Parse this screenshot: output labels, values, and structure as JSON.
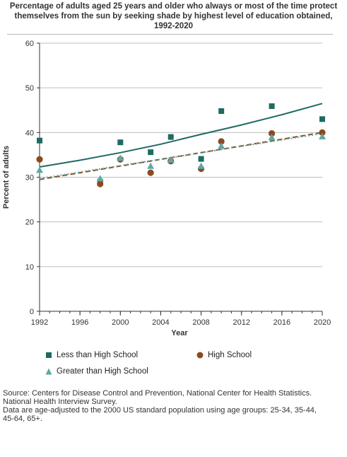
{
  "title_lines": [
    "Percentage of adults aged 25 years and older who always or most of the time protect",
    "themselves from the sun by seeking shade by highest level of education obtained,",
    "1992-2020"
  ],
  "colors": {
    "less_than_hs": "#1f6a63",
    "hs": "#8b4a1f",
    "gt_hs": "#5fa9a3",
    "gridline": "#bdbdbd"
  },
  "chart_data": {
    "type": "scatter",
    "xlabel": "Year",
    "ylabel": "Percent of adults",
    "xlim": [
      1992,
      2020
    ],
    "ylim": [
      0,
      60
    ],
    "xticks": [
      1992,
      1996,
      2000,
      2004,
      2008,
      2012,
      2016,
      2020
    ],
    "yticks": [
      0,
      10,
      20,
      30,
      40,
      50,
      60
    ],
    "grid": "horizontal",
    "legend_placement": "bottom",
    "series": [
      {
        "name": "Less than High School",
        "marker": "square",
        "color": "#1f6a63",
        "x": [
          1992,
          1998,
          2000,
          2003,
          2005,
          2008,
          2010,
          2015,
          2020
        ],
        "y": [
          38.2,
          29.0,
          37.8,
          35.6,
          39.0,
          34.1,
          44.8,
          45.9,
          43.0
        ],
        "trend": {
          "style": "solid",
          "x": [
            1992,
            1996,
            2000,
            2004,
            2008,
            2012,
            2016,
            2020
          ],
          "y": [
            32.3,
            33.8,
            35.5,
            37.4,
            39.6,
            41.7,
            44.0,
            46.5
          ]
        }
      },
      {
        "name": "High School",
        "marker": "circle",
        "color": "#8b4a1f",
        "x": [
          1992,
          1998,
          2000,
          2003,
          2005,
          2008,
          2010,
          2015,
          2020
        ],
        "y": [
          34.0,
          28.5,
          34.0,
          31.0,
          33.6,
          31.9,
          38.0,
          39.8,
          40.0
        ],
        "trend": {
          "style": "dashed",
          "x": [
            1992,
            2020
          ],
          "y": [
            29.5,
            40.0
          ]
        }
      },
      {
        "name": "Greater than High School",
        "marker": "triangle",
        "color": "#5fa9a3",
        "x": [
          1992,
          1998,
          2000,
          2003,
          2005,
          2008,
          2010,
          2015,
          2020
        ],
        "y": [
          31.6,
          29.7,
          34.3,
          32.5,
          33.9,
          32.5,
          37.0,
          38.9,
          39.1
        ],
        "trend": {
          "style": "dotted",
          "x": [
            1992,
            2020
          ],
          "y": [
            29.7,
            39.8
          ]
        }
      }
    ]
  },
  "legend": {
    "less_than_hs": "Less than High School",
    "hs": "High School",
    "gt_hs": "Greater than High School"
  },
  "source_lines": [
    "Source: Centers for Disease Control and Prevention, National Center for Health Statistics.",
    "National Health Interview Survey.",
    "Data are age-adjusted to the 2000 US standard population using age groups: 25-34, 35-44,",
    "45-64, 65+."
  ]
}
